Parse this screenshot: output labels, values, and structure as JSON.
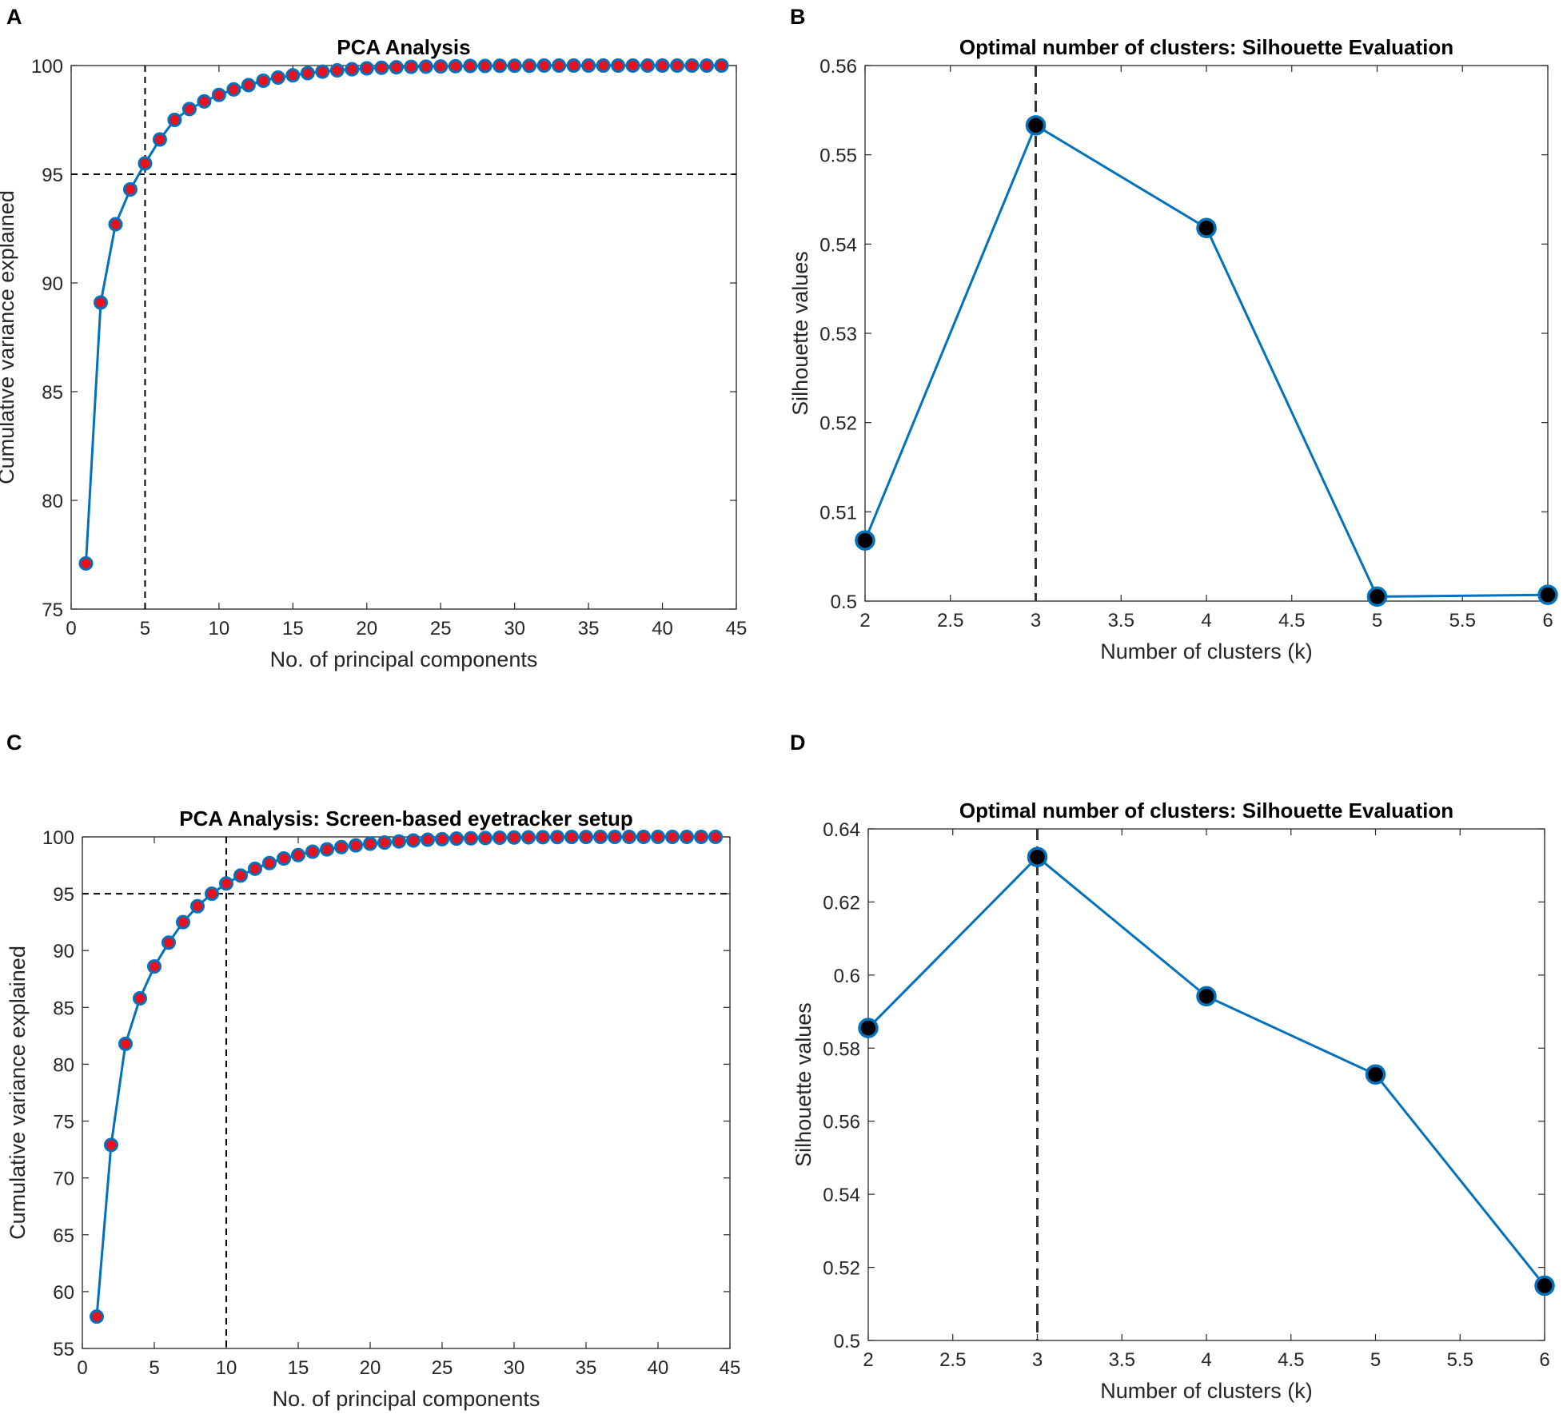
{
  "colors": {
    "line": "#0072BD",
    "marker_fill_pca": "#E8111F",
    "marker_fill_sil": "#000000",
    "axis": "#262626",
    "ref_line": "#000000"
  },
  "chart_data": [
    {
      "panel": "A",
      "type": "line",
      "title": "PCA Analysis",
      "xlabel": "No. of principal components",
      "ylabel": "Cumulative variance explained",
      "xlim": [
        0,
        45
      ],
      "ylim": [
        75,
        100
      ],
      "xticks": [
        0,
        5,
        10,
        15,
        20,
        25,
        30,
        35,
        40,
        45
      ],
      "yticks": [
        75,
        80,
        85,
        90,
        95,
        100
      ],
      "xticklabels": [
        "0",
        "5",
        "10",
        "15",
        "20",
        "25",
        "30",
        "35",
        "40",
        "45"
      ],
      "yticklabels": [
        "75",
        "80",
        "85",
        "90",
        "95",
        "100"
      ],
      "marker": "pca",
      "ref_x": 5,
      "ref_y": 95,
      "x": [
        1,
        2,
        3,
        4,
        5,
        6,
        7,
        8,
        9,
        10,
        11,
        12,
        13,
        14,
        15,
        16,
        17,
        18,
        19,
        20,
        21,
        22,
        23,
        24,
        25,
        26,
        27,
        28,
        29,
        30,
        31,
        32,
        33,
        34,
        35,
        36,
        37,
        38,
        39,
        40,
        41,
        42,
        43,
        44
      ],
      "y": [
        77.1,
        89.1,
        92.7,
        94.3,
        95.5,
        96.6,
        97.5,
        98.0,
        98.35,
        98.65,
        98.9,
        99.1,
        99.3,
        99.45,
        99.55,
        99.65,
        99.72,
        99.78,
        99.83,
        99.87,
        99.9,
        99.92,
        99.94,
        99.95,
        99.96,
        99.97,
        99.98,
        99.98,
        99.99,
        99.99,
        99.99,
        100,
        100,
        100,
        100,
        100,
        100,
        100,
        100,
        100,
        100,
        100,
        100,
        100
      ]
    },
    {
      "panel": "B",
      "type": "line",
      "title": "Optimal number of clusters: Silhouette Evaluation",
      "xlabel": "Number of clusters (k)",
      "ylabel": "Silhouette values",
      "xlim": [
        2,
        6
      ],
      "ylim": [
        0.5,
        0.56
      ],
      "xticks": [
        2,
        2.5,
        3,
        3.5,
        4,
        4.5,
        5,
        5.5,
        6
      ],
      "yticks": [
        0.5,
        0.51,
        0.52,
        0.53,
        0.54,
        0.55,
        0.56
      ],
      "xticklabels": [
        "2",
        "2.5",
        "3",
        "3.5",
        "4",
        "4.5",
        "5",
        "5.5",
        "6"
      ],
      "yticklabels": [
        "0.5",
        "0.51",
        "0.52",
        "0.53",
        "0.54",
        "0.55",
        "0.56"
      ],
      "marker": "sil",
      "ref_x": 3,
      "x": [
        2,
        3,
        4,
        5,
        6
      ],
      "y": [
        0.5068,
        0.5533,
        0.5418,
        0.5005,
        0.5007
      ]
    },
    {
      "panel": "C",
      "type": "line",
      "title": "PCA Analysis: Screen-based eyetracker setup",
      "xlabel": "No. of principal components",
      "ylabel": "Cumulative variance explained",
      "xlim": [
        0,
        45
      ],
      "ylim": [
        55,
        100
      ],
      "xticks": [
        0,
        5,
        10,
        15,
        20,
        25,
        30,
        35,
        40,
        45
      ],
      "yticks": [
        55,
        60,
        65,
        70,
        75,
        80,
        85,
        90,
        95,
        100
      ],
      "xticklabels": [
        "0",
        "5",
        "10",
        "15",
        "20",
        "25",
        "30",
        "35",
        "40",
        "45"
      ],
      "yticklabels": [
        "55",
        "60",
        "65",
        "70",
        "75",
        "80",
        "85",
        "90",
        "95",
        "100"
      ],
      "marker": "pca",
      "ref_x": 10,
      "ref_y": 95,
      "x": [
        1,
        2,
        3,
        4,
        5,
        6,
        7,
        8,
        9,
        10,
        11,
        12,
        13,
        14,
        15,
        16,
        17,
        18,
        19,
        20,
        21,
        22,
        23,
        24,
        25,
        26,
        27,
        28,
        29,
        30,
        31,
        32,
        33,
        34,
        35,
        36,
        37,
        38,
        39,
        40,
        41,
        42,
        43,
        44
      ],
      "y": [
        57.8,
        72.9,
        81.8,
        85.8,
        88.6,
        90.7,
        92.5,
        93.9,
        95.0,
        95.9,
        96.6,
        97.2,
        97.7,
        98.1,
        98.4,
        98.7,
        98.9,
        99.1,
        99.25,
        99.4,
        99.5,
        99.6,
        99.68,
        99.75,
        99.8,
        99.85,
        99.88,
        99.9,
        99.93,
        99.95,
        99.96,
        99.97,
        99.98,
        99.99,
        99.99,
        100,
        100,
        100,
        100,
        100,
        100,
        100,
        100,
        100
      ]
    },
    {
      "panel": "D",
      "type": "line",
      "title": "Optimal number of clusters: Silhouette Evaluation",
      "xlabel": "Number of clusters (k)",
      "ylabel": "Silhouette values",
      "xlim": [
        2,
        6
      ],
      "ylim": [
        0.5,
        0.64
      ],
      "xticks": [
        2,
        2.5,
        3,
        3.5,
        4,
        4.5,
        5,
        5.5,
        6
      ],
      "yticks": [
        0.5,
        0.52,
        0.54,
        0.56,
        0.58,
        0.6,
        0.62,
        0.64
      ],
      "xticklabels": [
        "2",
        "2.5",
        "3",
        "3.5",
        "4",
        "4.5",
        "5",
        "5.5",
        "6"
      ],
      "yticklabels": [
        "0.5",
        "0.52",
        "0.54",
        "0.56",
        "0.58",
        "0.6",
        "0.62",
        "0.64"
      ],
      "marker": "sil",
      "ref_x": 3,
      "x": [
        2,
        3,
        4,
        5,
        6
      ],
      "y": [
        0.5855,
        0.6323,
        0.5942,
        0.5728,
        0.515
      ]
    }
  ]
}
